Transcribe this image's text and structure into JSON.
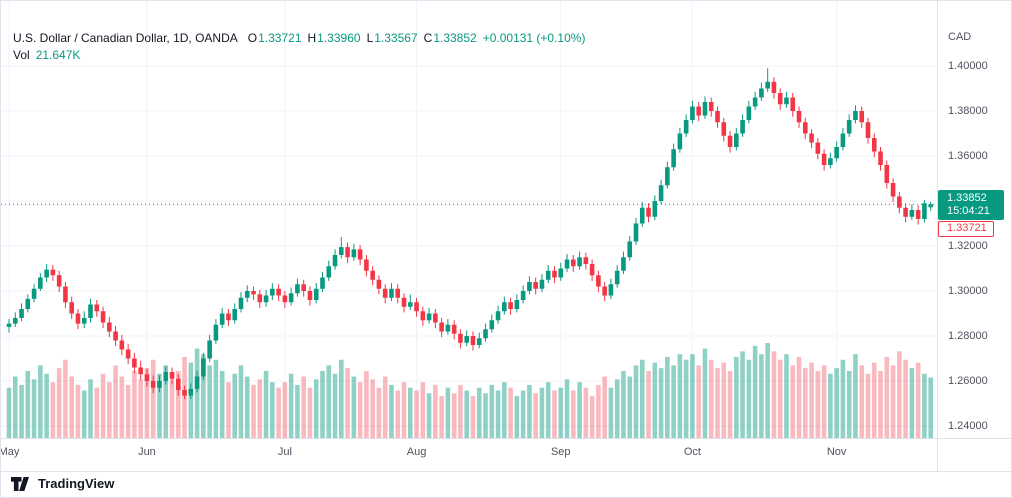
{
  "header": {
    "symbol_title": "U.S. Dollar / Canadian Dollar, 1D, OANDA",
    "ohlc": {
      "open_label": "O",
      "open": "1.33721",
      "high_label": "H",
      "high": "1.33960",
      "low_label": "L",
      "low": "1.33567",
      "close_label": "C",
      "close": "1.33852",
      "change": "+0.00131 (+0.10%)"
    },
    "volume_label": "Vol",
    "volume_value": "21.647K"
  },
  "axis": {
    "currency_label": "CAD",
    "price_ticks": [
      "1.40000",
      "1.38000",
      "1.36000",
      "1.34000",
      "1.32000",
      "1.30000",
      "1.28000",
      "1.26000",
      "1.24000"
    ],
    "last_price_badge": {
      "price": "1.33852",
      "countdown": "15:04:21",
      "background": "#089981"
    },
    "open_price_badge": {
      "price": "1.33721",
      "color": "#f23645"
    }
  },
  "footer": {
    "brand_name": "TradingView"
  },
  "chart_data": {
    "type": "candlestick",
    "title": "U.S. Dollar / Canadian Dollar, 1D, OANDA",
    "symbol": "USD/CAD",
    "interval": "1D",
    "exchange": "OANDA",
    "legend_position": "top-left",
    "grid": true,
    "y_axis": {
      "min": 1.24,
      "max": 1.4,
      "tick_step": 0.02,
      "currency": "CAD"
    },
    "x_axis_months": [
      "May",
      "Jun",
      "Jul",
      "Aug",
      "Sep",
      "Oct",
      "Nov"
    ],
    "last_bar": {
      "open": 1.33721,
      "high": 1.3396,
      "low": 1.33567,
      "close": 1.33852,
      "change": 0.00131,
      "change_pct": 0.1,
      "volume_k": 21.647,
      "countdown": "15:04:21"
    },
    "colors": {
      "up": "#089981",
      "down": "#f23645",
      "volume_up": "rgba(8,153,129,0.45)",
      "volume_down": "rgba(242,54,69,0.35)",
      "grid": "#f0f3fa",
      "last_price_line": "#089981",
      "axis_text": "#50535e"
    },
    "months": [
      {
        "label": "May",
        "index": 0
      },
      {
        "label": "Jun",
        "index": 22
      },
      {
        "label": "Jul",
        "index": 44
      },
      {
        "label": "Aug",
        "index": 65
      },
      {
        "label": "Sep",
        "index": 88
      },
      {
        "label": "Oct",
        "index": 109
      },
      {
        "label": "Nov",
        "index": 132
      }
    ],
    "ohlc": [
      [
        1.284,
        1.2875,
        1.2815,
        1.2855
      ],
      [
        1.2855,
        1.2905,
        1.284,
        1.288
      ],
      [
        1.288,
        1.2945,
        1.2865,
        1.292
      ],
      [
        1.292,
        1.2985,
        1.2905,
        1.2965
      ],
      [
        1.2965,
        1.303,
        1.295,
        1.301
      ],
      [
        1.301,
        1.308,
        1.3,
        1.306
      ],
      [
        1.306,
        1.312,
        1.304,
        1.3095
      ],
      [
        1.3095,
        1.3115,
        1.3045,
        1.307
      ],
      [
        1.307,
        1.309,
        1.2995,
        1.302
      ],
      [
        1.302,
        1.304,
        1.2925,
        1.295
      ],
      [
        1.295,
        1.2975,
        1.2875,
        1.29
      ],
      [
        1.29,
        1.292,
        1.283,
        1.2855
      ],
      [
        1.2855,
        1.291,
        1.2835,
        1.288
      ],
      [
        1.288,
        1.2965,
        1.286,
        1.294
      ],
      [
        1.294,
        1.296,
        1.2885,
        1.291
      ],
      [
        1.291,
        1.293,
        1.2835,
        1.286
      ],
      [
        1.286,
        1.2885,
        1.2795,
        1.282
      ],
      [
        1.282,
        1.2845,
        1.2755,
        1.278
      ],
      [
        1.278,
        1.2805,
        1.2715,
        1.274
      ],
      [
        1.274,
        1.2765,
        1.2675,
        1.27
      ],
      [
        1.27,
        1.2725,
        1.2635,
        1.266
      ],
      [
        1.266,
        1.269,
        1.2605,
        1.263
      ],
      [
        1.263,
        1.2655,
        1.2575,
        1.26
      ],
      [
        1.26,
        1.2625,
        1.2545,
        1.257
      ],
      [
        1.257,
        1.2625,
        1.255,
        1.26
      ],
      [
        1.26,
        1.2665,
        1.2585,
        1.264
      ],
      [
        1.264,
        1.266,
        1.2585,
        1.261
      ],
      [
        1.261,
        1.263,
        1.2535,
        1.256
      ],
      [
        1.256,
        1.258,
        1.252,
        1.2535
      ],
      [
        1.2535,
        1.259,
        1.252,
        1.2565
      ],
      [
        1.2565,
        1.2645,
        1.255,
        1.262
      ],
      [
        1.262,
        1.2725,
        1.2605,
        1.27
      ],
      [
        1.27,
        1.2805,
        1.2685,
        1.278
      ],
      [
        1.278,
        1.2875,
        1.2765,
        1.285
      ],
      [
        1.285,
        1.2925,
        1.2835,
        1.29
      ],
      [
        1.29,
        1.292,
        1.2845,
        1.287
      ],
      [
        1.287,
        1.2945,
        1.2855,
        1.292
      ],
      [
        1.292,
        1.2995,
        1.2905,
        1.297
      ],
      [
        1.297,
        1.3025,
        1.295,
        1.3
      ],
      [
        1.3,
        1.302,
        1.296,
        1.2985
      ],
      [
        1.2985,
        1.3005,
        1.2925,
        1.295
      ],
      [
        1.295,
        1.3005,
        1.293,
        1.298
      ],
      [
        1.298,
        1.3035,
        1.296,
        1.301
      ],
      [
        1.301,
        1.303,
        1.2955,
        1.298
      ],
      [
        1.298,
        1.3,
        1.2925,
        1.295
      ],
      [
        1.295,
        1.3015,
        1.2935,
        1.299
      ],
      [
        1.299,
        1.3055,
        1.2975,
        1.303
      ],
      [
        1.303,
        1.305,
        1.2975,
        1.3
      ],
      [
        1.3,
        1.302,
        1.2935,
        1.296
      ],
      [
        1.296,
        1.3035,
        1.2945,
        1.301
      ],
      [
        1.301,
        1.3085,
        1.2995,
        1.306
      ],
      [
        1.306,
        1.3135,
        1.3045,
        1.311
      ],
      [
        1.311,
        1.3185,
        1.3095,
        1.316
      ],
      [
        1.316,
        1.324,
        1.3145,
        1.3195
      ],
      [
        1.3195,
        1.3215,
        1.3125,
        1.315
      ],
      [
        1.315,
        1.321,
        1.3135,
        1.3185
      ],
      [
        1.3185,
        1.3205,
        1.3115,
        1.314
      ],
      [
        1.314,
        1.316,
        1.3065,
        1.309
      ],
      [
        1.309,
        1.311,
        1.3025,
        1.305
      ],
      [
        1.305,
        1.307,
        1.2985,
        1.301
      ],
      [
        1.301,
        1.303,
        1.2945,
        1.297
      ],
      [
        1.297,
        1.3035,
        1.2955,
        1.301
      ],
      [
        1.301,
        1.303,
        1.2945,
        1.297
      ],
      [
        1.297,
        1.299,
        1.2905,
        1.293
      ],
      [
        1.293,
        1.2985,
        1.2915,
        1.295
      ],
      [
        1.295,
        1.297,
        1.2885,
        1.291
      ],
      [
        1.291,
        1.293,
        1.2845,
        1.287
      ],
      [
        1.287,
        1.2925,
        1.2855,
        1.29
      ],
      [
        1.29,
        1.292,
        1.2835,
        1.286
      ],
      [
        1.286,
        1.288,
        1.2795,
        1.282
      ],
      [
        1.282,
        1.2875,
        1.2805,
        1.285
      ],
      [
        1.285,
        1.287,
        1.2785,
        1.281
      ],
      [
        1.281,
        1.283,
        1.2745,
        1.277
      ],
      [
        1.277,
        1.2825,
        1.2755,
        1.28
      ],
      [
        1.28,
        1.282,
        1.2735,
        1.276
      ],
      [
        1.276,
        1.2815,
        1.2745,
        1.279
      ],
      [
        1.279,
        1.2855,
        1.2775,
        1.283
      ],
      [
        1.283,
        1.2895,
        1.2815,
        1.287
      ],
      [
        1.287,
        1.2935,
        1.2855,
        1.291
      ],
      [
        1.291,
        1.2975,
        1.2895,
        1.295
      ],
      [
        1.295,
        1.297,
        1.2895,
        1.292
      ],
      [
        1.292,
        1.2985,
        1.2905,
        1.296
      ],
      [
        1.296,
        1.3025,
        1.2945,
        1.3
      ],
      [
        1.3,
        1.3065,
        1.2985,
        1.304
      ],
      [
        1.304,
        1.306,
        1.2985,
        1.301
      ],
      [
        1.301,
        1.3075,
        1.2995,
        1.305
      ],
      [
        1.305,
        1.3115,
        1.3035,
        1.309
      ],
      [
        1.309,
        1.311,
        1.3035,
        1.306
      ],
      [
        1.306,
        1.3125,
        1.3045,
        1.31
      ],
      [
        1.31,
        1.3165,
        1.3085,
        1.314
      ],
      [
        1.314,
        1.316,
        1.3085,
        1.311
      ],
      [
        1.311,
        1.3175,
        1.3095,
        1.315
      ],
      [
        1.315,
        1.317,
        1.3095,
        1.312
      ],
      [
        1.312,
        1.314,
        1.3045,
        1.307
      ],
      [
        1.307,
        1.309,
        1.2995,
        1.302
      ],
      [
        1.302,
        1.304,
        1.2955,
        1.298
      ],
      [
        1.298,
        1.3055,
        1.2965,
        1.303
      ],
      [
        1.303,
        1.3115,
        1.3015,
        1.309
      ],
      [
        1.309,
        1.3175,
        1.3075,
        1.315
      ],
      [
        1.315,
        1.3245,
        1.3135,
        1.322
      ],
      [
        1.322,
        1.3325,
        1.3205,
        1.33
      ],
      [
        1.33,
        1.3395,
        1.3285,
        1.337
      ],
      [
        1.337,
        1.339,
        1.3305,
        1.333
      ],
      [
        1.333,
        1.3425,
        1.3315,
        1.34
      ],
      [
        1.34,
        1.3495,
        1.3385,
        1.347
      ],
      [
        1.347,
        1.3575,
        1.3455,
        1.355
      ],
      [
        1.355,
        1.3655,
        1.3535,
        1.363
      ],
      [
        1.363,
        1.3725,
        1.3615,
        1.37
      ],
      [
        1.37,
        1.3785,
        1.3685,
        1.376
      ],
      [
        1.376,
        1.3845,
        1.3745,
        1.382
      ],
      [
        1.382,
        1.384,
        1.3755,
        1.378
      ],
      [
        1.378,
        1.3865,
        1.3765,
        1.384
      ],
      [
        1.384,
        1.386,
        1.3775,
        1.38
      ],
      [
        1.38,
        1.382,
        1.3725,
        1.375
      ],
      [
        1.375,
        1.377,
        1.3665,
        1.369
      ],
      [
        1.369,
        1.371,
        1.3615,
        1.364
      ],
      [
        1.364,
        1.3725,
        1.3625,
        1.37
      ],
      [
        1.37,
        1.3785,
        1.3685,
        1.376
      ],
      [
        1.376,
        1.3845,
        1.3745,
        1.382
      ],
      [
        1.382,
        1.3885,
        1.3805,
        1.386
      ],
      [
        1.386,
        1.3925,
        1.3845,
        1.39
      ],
      [
        1.39,
        1.399,
        1.3885,
        1.393
      ],
      [
        1.393,
        1.395,
        1.3855,
        1.388
      ],
      [
        1.388,
        1.39,
        1.3805,
        1.383
      ],
      [
        1.383,
        1.3885,
        1.3815,
        1.386
      ],
      [
        1.386,
        1.388,
        1.3775,
        1.38
      ],
      [
        1.38,
        1.382,
        1.3725,
        1.375
      ],
      [
        1.375,
        1.377,
        1.3675,
        1.37
      ],
      [
        1.37,
        1.372,
        1.3635,
        1.366
      ],
      [
        1.366,
        1.368,
        1.3585,
        1.361
      ],
      [
        1.361,
        1.363,
        1.3535,
        1.356
      ],
      [
        1.356,
        1.3615,
        1.3545,
        1.359
      ],
      [
        1.359,
        1.3665,
        1.3575,
        1.364
      ],
      [
        1.364,
        1.3725,
        1.3625,
        1.37
      ],
      [
        1.37,
        1.3785,
        1.3685,
        1.376
      ],
      [
        1.376,
        1.3825,
        1.3745,
        1.38
      ],
      [
        1.38,
        1.382,
        1.3725,
        1.375
      ],
      [
        1.375,
        1.377,
        1.3655,
        1.368
      ],
      [
        1.368,
        1.37,
        1.3595,
        1.362
      ],
      [
        1.362,
        1.364,
        1.3535,
        1.356
      ],
      [
        1.356,
        1.358,
        1.3455,
        1.348
      ],
      [
        1.348,
        1.35,
        1.3395,
        1.342
      ],
      [
        1.342,
        1.344,
        1.3345,
        1.337
      ],
      [
        1.337,
        1.339,
        1.3305,
        1.333
      ],
      [
        1.333,
        1.3385,
        1.3315,
        1.336
      ],
      [
        1.336,
        1.338,
        1.3295,
        1.332
      ],
      [
        1.332,
        1.3405,
        1.3305,
        1.339
      ],
      [
        1.33721,
        1.3396,
        1.33567,
        1.33852
      ]
    ],
    "volumes_k": [
      18,
      22,
      19,
      24,
      21,
      26,
      23,
      20,
      25,
      28,
      22,
      19,
      17,
      21,
      18,
      23,
      20,
      26,
      22,
      19,
      24,
      21,
      25,
      28,
      23,
      26,
      21,
      24,
      29,
      27,
      32,
      30,
      26,
      28,
      24,
      20,
      23,
      26,
      22,
      19,
      21,
      24,
      20,
      18,
      20,
      23,
      19,
      22,
      18,
      21,
      24,
      26,
      23,
      28,
      25,
      22,
      20,
      24,
      21,
      18,
      22,
      19,
      17,
      20,
      18,
      17,
      20,
      16,
      19,
      15,
      18,
      16,
      19,
      17,
      15,
      18,
      16,
      19,
      17,
      20,
      18,
      15,
      17,
      19,
      16,
      18,
      20,
      17,
      18,
      21,
      17,
      20,
      18,
      15,
      19,
      22,
      18,
      21,
      24,
      22,
      26,
      28,
      24,
      27,
      25,
      29,
      26,
      30,
      28,
      30,
      26,
      32,
      28,
      25,
      27,
      24,
      29,
      31,
      28,
      33,
      30,
      34,
      31,
      28,
      30,
      26,
      29,
      25,
      27,
      24,
      26,
      23,
      25,
      28,
      24,
      30,
      26,
      23,
      27,
      24,
      29,
      26,
      31,
      28,
      25,
      27,
      23,
      21.647
    ]
  }
}
